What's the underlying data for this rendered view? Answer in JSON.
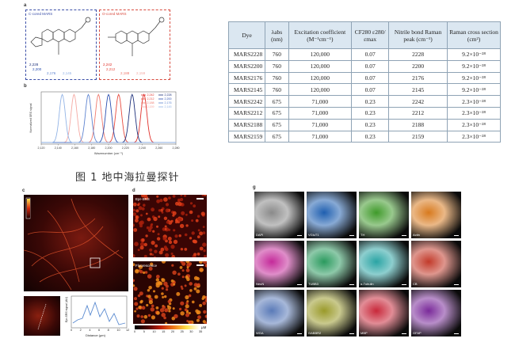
{
  "figure_top": {
    "panel_a": "a",
    "panel_b": "b",
    "box_left_title": "C-cored MARS",
    "box_right_title": "O-cored MARS",
    "left_peaks": [
      "2,228",
      "2,200",
      "2,176",
      "2,145"
    ],
    "right_peaks": [
      "2,242",
      "2,212",
      "2,188",
      "2,159"
    ]
  },
  "chart_data": {
    "type": "line",
    "xlabel": "Wavenumber (cm⁻¹)",
    "ylabel": "Normalized SRS signal",
    "xlim": [
      2120,
      2280
    ],
    "x_ticks": [
      "2,120",
      "2,140",
      "2,160",
      "2,180",
      "2,200",
      "2,220",
      "2,240",
      "2,260",
      "2,280"
    ],
    "legend_placement": "top-right",
    "series": [
      {
        "name": "2,242",
        "color": "#e0302a",
        "center": 2242,
        "dash": false
      },
      {
        "name": "2,212",
        "color": "#e84a3e",
        "center": 2212,
        "dash": false
      },
      {
        "name": "2,188",
        "color": "#f07a6e",
        "center": 2188,
        "dash": false
      },
      {
        "name": "2,159",
        "color": "#f5a9a3",
        "center": 2159,
        "dash": false
      },
      {
        "name": "2,228",
        "color": "#1c2f7a",
        "center": 2228,
        "dash": false
      },
      {
        "name": "2,200",
        "color": "#2a4fb0",
        "center": 2200,
        "dash": false
      },
      {
        "name": "2,176",
        "color": "#5e84d0",
        "center": 2176,
        "dash": false
      },
      {
        "name": "2,145",
        "color": "#93b4e6",
        "center": 2145,
        "dash": false
      }
    ]
  },
  "caption": "图 1 地中海拉曼探针",
  "table": {
    "headers": [
      "Dye",
      "λabs (nm)",
      "Excitation coefficient (M⁻¹cm⁻¹)",
      "CF280 ε280/εmax",
      "Nitrile bond Raman peak (cm⁻¹)",
      "Raman cross section (cm²)"
    ],
    "rows": [
      [
        "MARS2228",
        "760",
        "120,000",
        "0.07",
        "2228",
        "9.2×10⁻²⁸"
      ],
      [
        "MARS2200",
        "760",
        "120,000",
        "0.07",
        "2200",
        "9.2×10⁻²⁸"
      ],
      [
        "MARS2176",
        "760",
        "120,000",
        "0.07",
        "2176",
        "9.2×10⁻²⁸"
      ],
      [
        "MARS2145",
        "760",
        "120,000",
        "0.07",
        "2145",
        "9.2×10⁻²⁸"
      ],
      [
        "MARS2242",
        "675",
        "71,000",
        "0.23",
        "2242",
        "2.3×10⁻²⁸"
      ],
      [
        "MARS2212",
        "675",
        "71,000",
        "0.23",
        "2212",
        "2.3×10⁻²⁸"
      ],
      [
        "MARS2188",
        "675",
        "71,000",
        "0.23",
        "2188",
        "2.3×10⁻²⁸"
      ],
      [
        "MARS2159",
        "675",
        "71,000",
        "0.23",
        "2159",
        "2.3×10⁻²⁸"
      ]
    ]
  },
  "figure_bottom": {
    "panel_c": "c",
    "panel_d": "d",
    "panel_g": "g",
    "d_top_label": "Epr-SRS",
    "d_bottom_label": "Fluorescence",
    "c_plot_ylabel": "Epr-SRS signal (AU)",
    "c_plot_xlabel": "Distance (µm)",
    "c_plot_xticks": [
      "0",
      "2",
      "4",
      "6",
      "8",
      "10",
      "12"
    ],
    "colorbar_ticks": [
      "0",
      "5",
      "10",
      "15",
      "20",
      "25",
      "30",
      "35"
    ],
    "colorbar_unit": "µM",
    "grid_labels": [
      "DAPI",
      "VGluT1",
      "TH",
      "Actin",
      "NeuN",
      "TUBB3",
      "α-Tubulin",
      "CB",
      "WGA",
      "GABBR2",
      "MBP",
      "GFAP"
    ],
    "grid_colors": [
      "#8a8a8a",
      "#1f5fb0",
      "#3f9a2a",
      "#d87a1e",
      "#c42a9a",
      "#2a9a5e",
      "#2aa4a4",
      "#c23a2a",
      "#5a7ab8",
      "#9a9a2a",
      "#c8283a",
      "#7a2a9a"
    ]
  }
}
